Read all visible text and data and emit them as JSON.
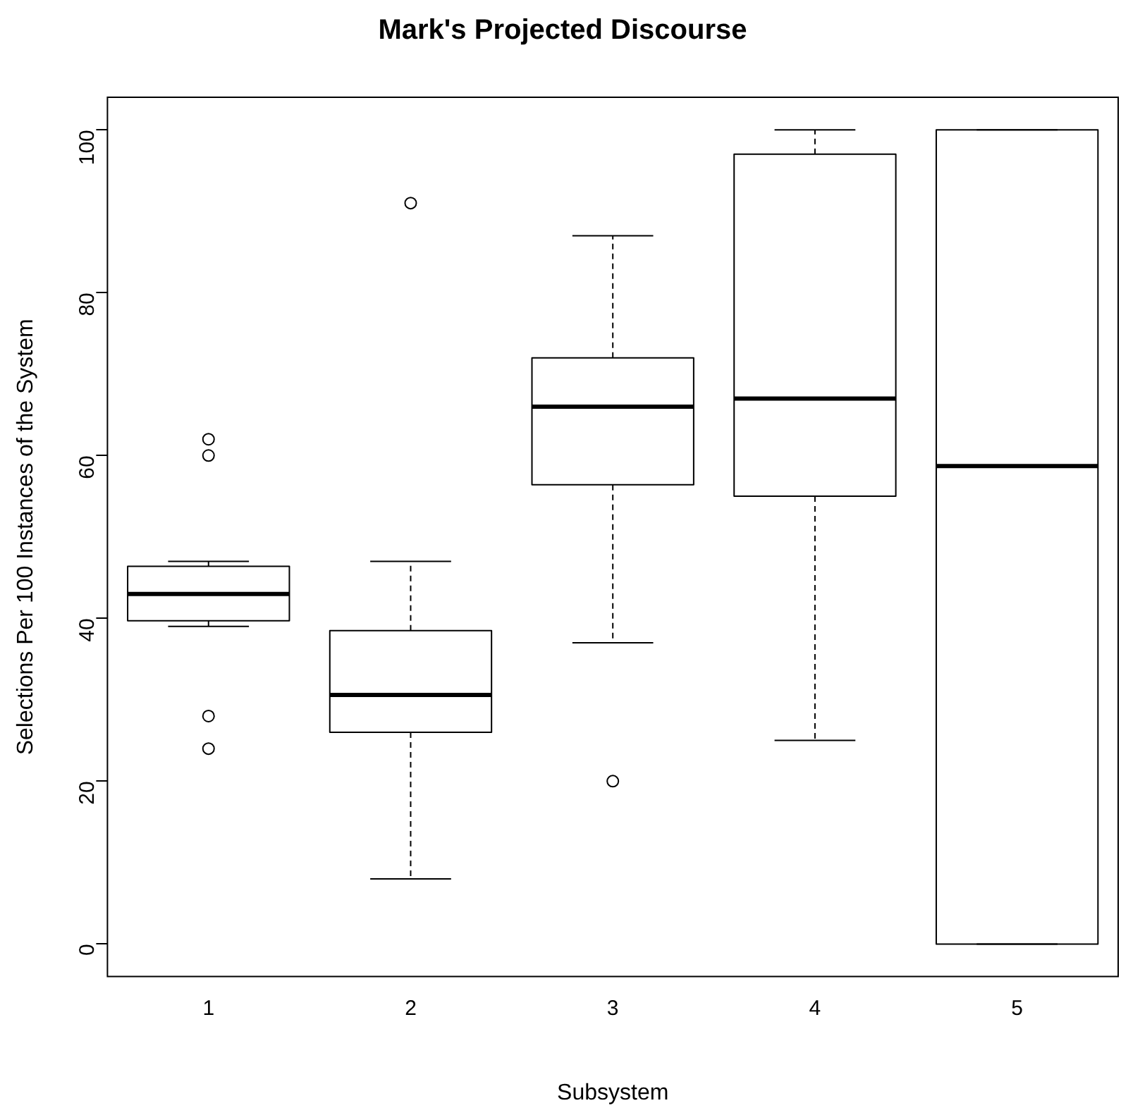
{
  "chart_data": {
    "type": "box",
    "title": "Mark's Projected Discourse",
    "xlabel": "Subsystem",
    "ylabel": "Selections Per 100 Instances of the System",
    "categories": [
      "1",
      "2",
      "3",
      "4",
      "5"
    ],
    "boxes": [
      {
        "low": 39,
        "q1": 39.7,
        "median": 43,
        "q3": 46.4,
        "high": 47,
        "outliers": [
          62,
          60,
          28,
          24
        ]
      },
      {
        "low": 8,
        "q1": 26,
        "median": 30.6,
        "q3": 38.5,
        "high": 47,
        "outliers": [
          91
        ]
      },
      {
        "low": 37,
        "q1": 56.4,
        "median": 66,
        "q3": 72,
        "high": 87,
        "outliers": [
          20
        ]
      },
      {
        "low": 25,
        "q1": 55,
        "median": 67,
        "q3": 97,
        "high": 100
      },
      {
        "low": 0,
        "q1": 0,
        "median": 58.7,
        "q3": 100,
        "high": 100
      }
    ],
    "color": "#000000",
    "ylim": [
      -4,
      104
    ],
    "yticks": [
      0,
      20,
      40,
      60,
      80,
      100
    ],
    "grid": false,
    "legend": false
  }
}
